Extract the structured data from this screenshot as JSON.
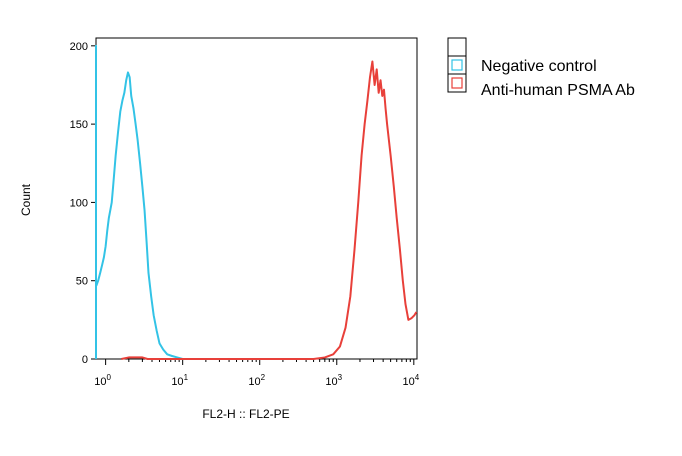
{
  "chart_data": {
    "type": "line",
    "xlabel": "FL2-H :: FL2-PE",
    "ylabel": "Count",
    "x_scale": "log",
    "xlim": [
      0.75,
      11000
    ],
    "ylim": [
      0,
      205
    ],
    "y_ticks": [
      0,
      50,
      100,
      150,
      200
    ],
    "x_ticks": [
      {
        "value": 1,
        "base": "10",
        "exp": "0"
      },
      {
        "value": 10,
        "base": "10",
        "exp": "1"
      },
      {
        "value": 100,
        "base": "10",
        "exp": "2"
      },
      {
        "value": 1000,
        "base": "10",
        "exp": "3"
      },
      {
        "value": 10000,
        "base": "10",
        "exp": "4"
      }
    ],
    "grid": false,
    "legend_position": "top-right",
    "series": [
      {
        "name": "Negative control",
        "color": "#33c3e6",
        "x": [
          0.75,
          0.75,
          0.75,
          0.76,
          0.8,
          0.85,
          0.9,
          0.95,
          1.0,
          1.05,
          1.1,
          1.15,
          1.2,
          1.25,
          1.35,
          1.45,
          1.55,
          1.65,
          1.75,
          1.85,
          1.95,
          2.05,
          2.15,
          2.3,
          2.45,
          2.6,
          2.8,
          3.0,
          3.2,
          3.4,
          3.6,
          3.9,
          4.2,
          4.6,
          5.0,
          5.6,
          6.3,
          7.2,
          8.5,
          10.0,
          12.0,
          14.0
        ],
        "y": [
          0,
          200,
          50,
          47,
          50,
          55,
          60,
          65,
          72,
          82,
          90,
          95,
          100,
          110,
          130,
          145,
          158,
          165,
          170,
          178,
          183,
          180,
          168,
          160,
          150,
          140,
          125,
          110,
          95,
          75,
          55,
          40,
          28,
          18,
          10,
          6,
          3,
          2,
          1,
          0,
          0,
          0
        ]
      },
      {
        "name": "Anti-human PSMA Ab",
        "color": "#e8403a",
        "x": [
          1.6,
          2.0,
          2.5,
          3.0,
          3.5,
          4.5,
          500,
          700,
          900,
          1100,
          1300,
          1500,
          1700,
          1900,
          2100,
          2300,
          2500,
          2700,
          2900,
          3100,
          3300,
          3500,
          3700,
          3900,
          4100,
          4300,
          4500,
          5000,
          5500,
          6000,
          6600,
          7200,
          7800,
          8500,
          9300,
          10200,
          10800
        ],
        "y": [
          0,
          1,
          1,
          1,
          0,
          0,
          0,
          1,
          3,
          8,
          20,
          40,
          70,
          100,
          130,
          150,
          165,
          180,
          190,
          175,
          185,
          170,
          178,
          168,
          172,
          160,
          150,
          130,
          110,
          90,
          70,
          50,
          35,
          25,
          26,
          28,
          30
        ]
      }
    ],
    "legend": {
      "header_label": "",
      "items": [
        {
          "label": "Negative control",
          "color": "#33c3e6"
        },
        {
          "label": "Anti-human PSMA Ab",
          "color": "#e8403a"
        }
      ]
    }
  }
}
